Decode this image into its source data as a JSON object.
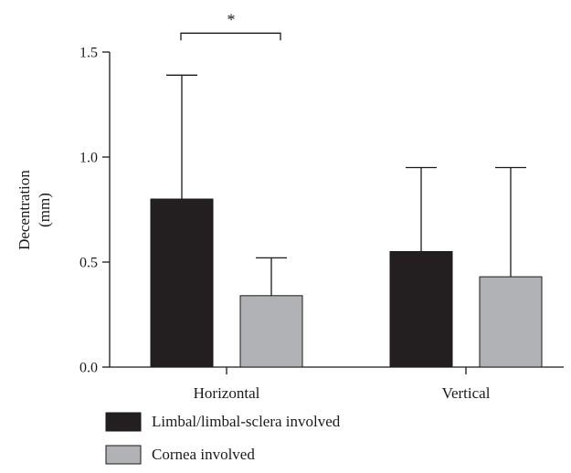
{
  "chart_data": {
    "type": "bar",
    "categories": [
      "Horizontal",
      "Vertical"
    ],
    "series": [
      {
        "name": "Limbal/limbal-sclera involved",
        "color": "#231f20",
        "values": [
          0.8,
          0.55
        ],
        "error_upper": [
          1.39,
          0.95
        ]
      },
      {
        "name": "Cornea involved",
        "color": "#b1b2b6",
        "values": [
          0.34,
          0.43
        ],
        "error_upper": [
          0.52,
          0.95
        ]
      }
    ],
    "ylabel": [
      "Decentration",
      "(mm)"
    ],
    "ylim": [
      0,
      1.5
    ],
    "yticks": [
      0.0,
      0.5,
      1.0,
      1.5
    ],
    "ytick_labels": [
      "0.0",
      "0.5",
      "1.0",
      "1.5"
    ],
    "grid": false,
    "legend_position": "bottom-left",
    "annotations": [
      {
        "text": "*",
        "category": "Horizontal",
        "bracket_level": 1.59
      }
    ]
  }
}
